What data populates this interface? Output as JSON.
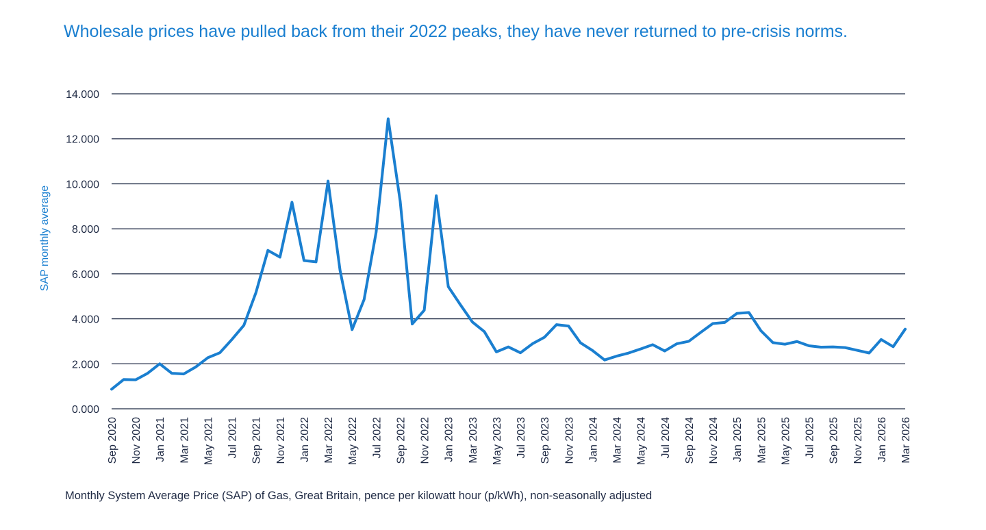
{
  "chart_data": {
    "type": "line",
    "title": "Wholesale prices have pulled back from their 2022 peaks, they have never returned to pre-crisis norms.",
    "ylabel": "SAP monthly average",
    "xlabel": "",
    "caption": "Monthly System Average Price (SAP) of Gas, Great Britain, pence per kilowatt hour (p/kWh), non-seasonally adjusted",
    "ylim": [
      0,
      14
    ],
    "yticks": [
      "0.000",
      "2.000",
      "4.000",
      "6.000",
      "8.000",
      "10.000",
      "12.000",
      "14.000"
    ],
    "grid": true,
    "legend": "none",
    "colors": {
      "line": "#1a7fd0",
      "title": "#1a7fd0",
      "axis_text": "#1f2a44",
      "grid": "#1f2a44"
    },
    "x": [
      "Sep 2020",
      "Oct 2020",
      "Nov 2020",
      "Dec 2020",
      "Jan 2021",
      "Feb 2021",
      "Mar 2021",
      "Apr 2021",
      "May 2021",
      "Jun 2021",
      "Jul 2021",
      "Aug 2021",
      "Sep 2021",
      "Oct 2021",
      "Nov 2021",
      "Dec 2021",
      "Jan 2022",
      "Feb 2022",
      "Mar 2022",
      "Apr 2022",
      "May 2022",
      "Jun 2022",
      "Jul 2022",
      "Aug 2022",
      "Sep 2022",
      "Oct 2022",
      "Nov 2022",
      "Dec 2022",
      "Jan 2023",
      "Feb 2023",
      "Mar 2023",
      "Apr 2023",
      "May 2023",
      "Jun 2023",
      "Jul 2023",
      "Aug 2023",
      "Sep 2023",
      "Oct 2023",
      "Nov 2023",
      "Dec 2023",
      "Jan 2024",
      "Feb 2024",
      "Mar 2024",
      "Apr 2024",
      "May 2024",
      "Jun 2024",
      "Jul 2024",
      "Aug 2024",
      "Sep 2024",
      "Oct 2024",
      "Nov 2024",
      "Dec 2024",
      "Jan 2025",
      "Feb 2025",
      "Mar 2025",
      "Apr 2025",
      "May 2025",
      "Jun 2025",
      "Jul 2025",
      "Aug 2025",
      "Sep 2025",
      "Oct 2025",
      "Nov 2025",
      "Dec 2025",
      "Jan 2026",
      "Feb 2026",
      "Mar 2026"
    ],
    "xtick_labels": [
      "Sep 2020",
      "Nov 2020",
      "Jan 2021",
      "Mar 2021",
      "May 2021",
      "Jul 2021",
      "Sep 2021",
      "Nov 2021",
      "Jan 2022",
      "Mar 2022",
      "May 2022",
      "Jul 2022",
      "Sep 2022",
      "Nov 2022",
      "Jan 2023",
      "Mar 2023",
      "May 2023",
      "Jul 2023",
      "Sep 2023",
      "Nov 2023",
      "Jan 2024",
      "Mar 2024",
      "May 2024",
      "Jul 2024",
      "Sep 2024",
      "Nov 2024",
      "Jan 2025",
      "Mar 2025",
      "May 2025",
      "Jul 2025",
      "Sep 2025",
      "Nov 2025",
      "Jan 2026",
      "Mar 2026"
    ],
    "series": [
      {
        "name": "SAP monthly average",
        "values": [
          0.87,
          1.3,
          1.29,
          1.58,
          2.0,
          1.58,
          1.55,
          1.86,
          2.27,
          2.49,
          3.08,
          3.71,
          5.16,
          7.04,
          6.74,
          9.18,
          6.59,
          6.53,
          10.12,
          6.15,
          3.52,
          4.86,
          7.85,
          12.89,
          9.23,
          3.77,
          4.38,
          9.47,
          5.43,
          4.63,
          3.86,
          3.43,
          2.53,
          2.75,
          2.49,
          2.89,
          3.18,
          3.74,
          3.68,
          2.93,
          2.59,
          2.17,
          2.34,
          2.48,
          2.66,
          2.85,
          2.57,
          2.89,
          3.0,
          3.4,
          3.79,
          3.84,
          4.24,
          4.28,
          3.47,
          2.94,
          2.87,
          2.99,
          2.8,
          2.74,
          2.75,
          2.72,
          2.6,
          2.48,
          3.08,
          2.76,
          3.54
        ]
      }
    ]
  }
}
